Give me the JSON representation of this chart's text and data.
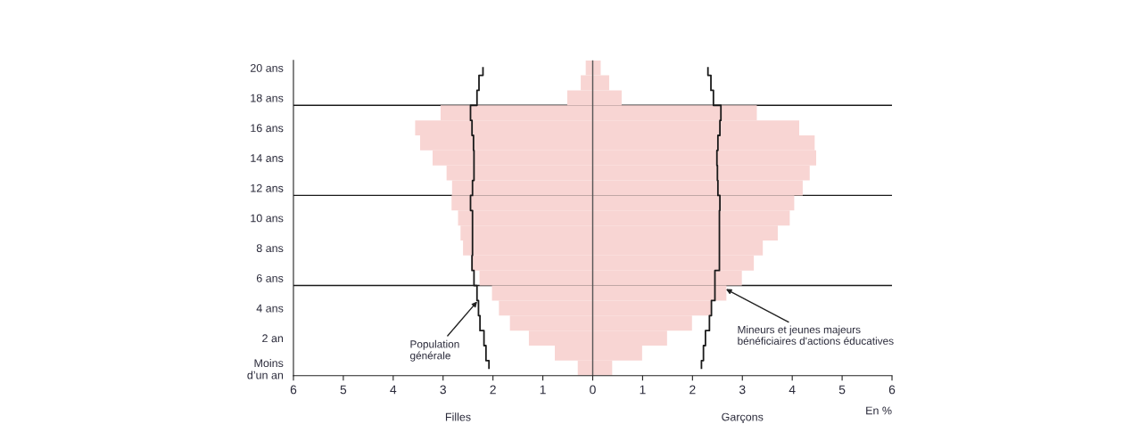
{
  "chart_data": {
    "type": "bar",
    "orientation": "horizontal",
    "stacked": true,
    "x": [
      0,
      1,
      2,
      3,
      4,
      5,
      6,
      7,
      8,
      9,
      10,
      11,
      12,
      13,
      14,
      15,
      16,
      17,
      18,
      19,
      20
    ],
    "series": [
      {
        "color": "#f8d5d3",
        "values": [
          -0.3,
          -0.76,
          -1.28,
          -1.66,
          -1.88,
          -2.02,
          -2.27,
          -2.44,
          -2.6,
          -2.65,
          -2.7,
          -2.83,
          -2.82,
          -2.93,
          -3.21,
          -3.46,
          -3.56,
          -3.05,
          -0.51,
          -0.24,
          -0.14
        ]
      },
      {
        "color": "#f8d5d3",
        "values": [
          0.39,
          0.99,
          1.49,
          1.99,
          2.38,
          2.68,
          2.99,
          3.23,
          3.41,
          3.71,
          3.95,
          4.04,
          4.21,
          4.35,
          4.48,
          4.45,
          4.14,
          3.29,
          0.58,
          0.33,
          0.16
        ]
      },
      {
        "type": "step",
        "color": "#1a1a1a",
        "values": [
          -2.08,
          -2.14,
          -2.18,
          -2.26,
          -2.29,
          -2.32,
          -2.38,
          -2.42,
          -2.41,
          -2.41,
          -2.41,
          -2.45,
          -2.41,
          -2.38,
          -2.38,
          -2.39,
          -2.42,
          -2.45,
          -2.32,
          -2.28,
          -2.2
        ]
      },
      {
        "type": "step",
        "color": "#1a1a1a",
        "values": [
          2.18,
          2.22,
          2.26,
          2.34,
          2.38,
          2.45,
          2.45,
          2.54,
          2.54,
          2.54,
          2.54,
          2.55,
          2.51,
          2.5,
          2.49,
          2.51,
          2.55,
          2.57,
          2.42,
          2.37,
          2.31
        ]
      }
    ],
    "xlim": [
      -6,
      6
    ],
    "xticks": [
      {
        "value": -6,
        "label": "6"
      },
      {
        "value": -5,
        "label": "5"
      },
      {
        "value": -4,
        "label": "4"
      },
      {
        "value": -3,
        "label": "3"
      },
      {
        "value": -2,
        "label": "2"
      },
      {
        "value": -1,
        "label": "1"
      },
      0,
      1,
      2,
      3,
      4,
      5,
      6
    ],
    "ylim": [
      -0.5,
      20.5
    ],
    "yticks": [
      {
        "value": 0,
        "label": "Moins\nd’un an"
      },
      {
        "value": 2,
        "label": "2 an"
      },
      {
        "value": 4,
        "label": "4 ans"
      },
      {
        "value": 6,
        "label": "6 ans"
      },
      {
        "value": 8,
        "label": "8 ans"
      },
      {
        "value": 10,
        "label": "10 ans"
      },
      {
        "value": 12,
        "label": "12 ans"
      },
      {
        "value": 14,
        "label": "14 ans"
      },
      {
        "value": 16,
        "label": "16 ans"
      },
      {
        "value": 18,
        "label": "18 ans"
      },
      {
        "value": 20,
        "label": "20 ans"
      }
    ],
    "xlabel": "En %",
    "ref_lines": [
      {
        "axis": "x",
        "value": 0,
        "color": "#555555"
      },
      {
        "axis": "y",
        "value": 5.5,
        "color": "#1a1a1a"
      },
      {
        "axis": "y",
        "value": 11.5,
        "color": "#1a1a1a"
      },
      {
        "axis": "y",
        "value": 17.5,
        "color": "#1a1a1a"
      }
    ],
    "annotations": [
      "Filles",
      "Garçons",
      {
        "text": "Population\ngénérale",
        "x": -2.3,
        "y": 4.5
      },
      {
        "text": "Mineurs et jeunes majeurs\nbénéficiaires d'actions éducatives",
        "x": 2.65,
        "y": 5.3
      }
    ],
    "grid": false,
    "legend": false
  }
}
